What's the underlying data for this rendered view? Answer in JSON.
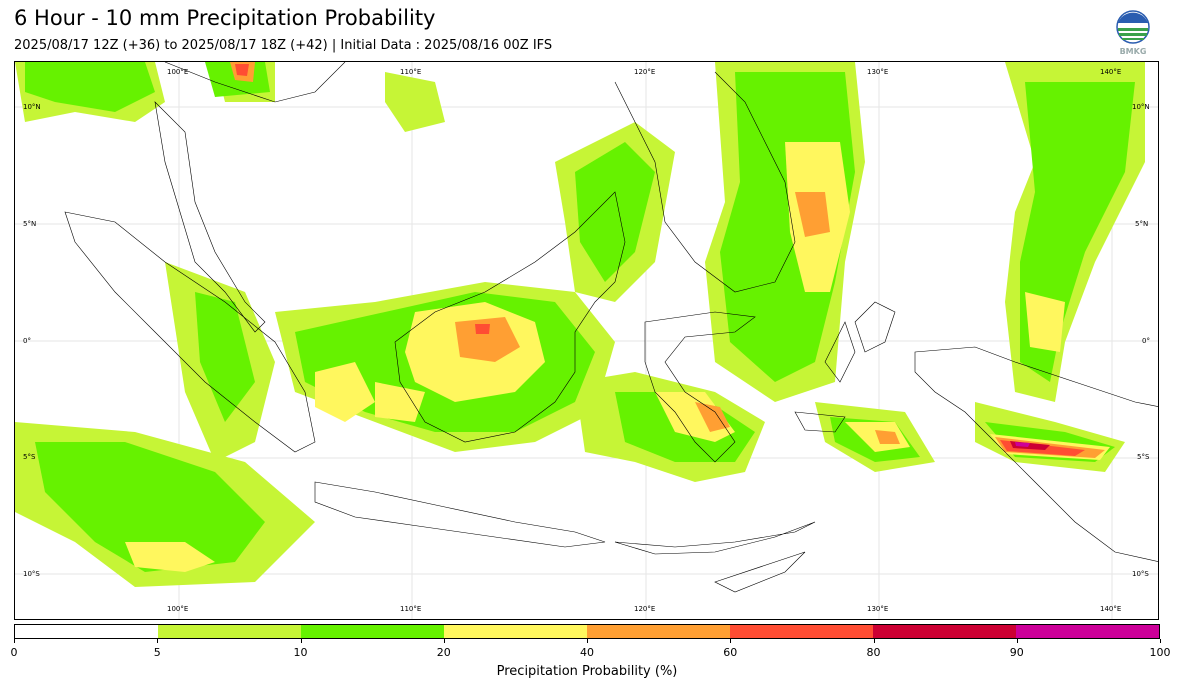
{
  "title": "6 Hour - 10 mm Precipitation Probability",
  "subtitle": "2025/08/17 12Z (+36) to 2025/08/17 18Z (+42) | Initial Data : 2025/08/16 00Z IFS",
  "logo_text": "BMKG",
  "map": {
    "lon_labels": [
      "100°E",
      "110°E",
      "120°E",
      "130°E",
      "140°E"
    ],
    "lat_labels": [
      "10°N",
      "5°N",
      "0°",
      "5°S",
      "10°S"
    ]
  },
  "colorbar": {
    "ticks": [
      "0",
      "5",
      "10",
      "20",
      "40",
      "60",
      "80",
      "90",
      "100"
    ],
    "colors": [
      "#ffffff",
      "#c6f536",
      "#66f200",
      "#fff75e",
      "#ff9f33",
      "#ff4d33",
      "#cc0033",
      "#cc0099"
    ],
    "label": "Precipitation Probability (%)"
  }
}
